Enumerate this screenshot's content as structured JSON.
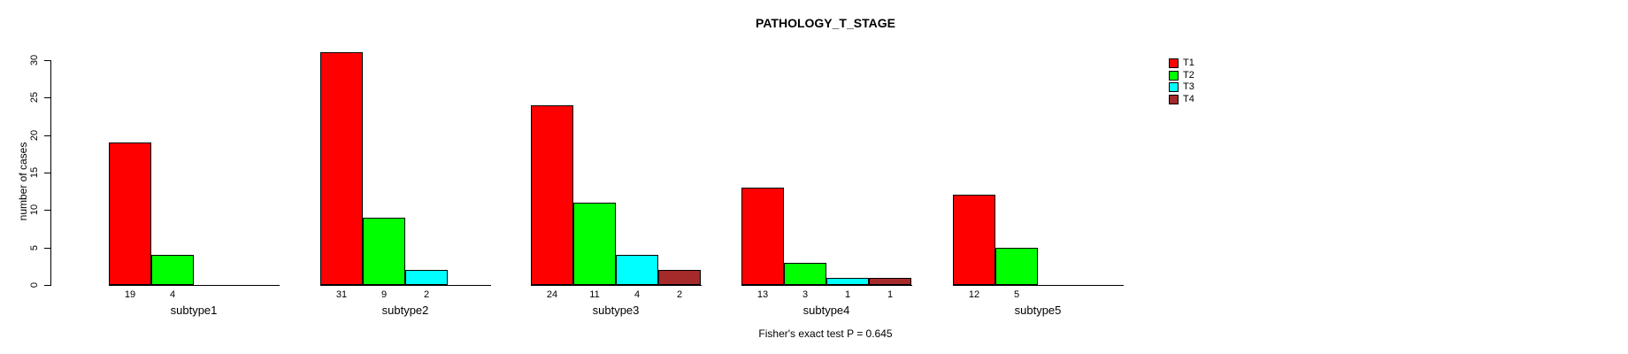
{
  "title": "PATHOLOGY_T_STAGE",
  "y_axis": {
    "label": "number of cases",
    "ticks": [
      0,
      5,
      10,
      15,
      20,
      25,
      30
    ]
  },
  "footer": "Fisher's exact test P = 0.645",
  "chart_data": {
    "type": "bar",
    "title": "PATHOLOGY_T_STAGE",
    "xlabel": "",
    "ylabel": "number of cases",
    "ylim": [
      0,
      30
    ],
    "yticks": [
      0,
      5,
      10,
      15,
      20,
      25,
      30
    ],
    "grid": false,
    "legend_position": "top-right",
    "categories": [
      "subtype1",
      "subtype2",
      "subtype3",
      "subtype4",
      "subtype5"
    ],
    "series": [
      {
        "name": "T1",
        "color": "#FF0000",
        "values": [
          19,
          31,
          24,
          13,
          12
        ]
      },
      {
        "name": "T2",
        "color": "#00FF00",
        "values": [
          4,
          9,
          11,
          3,
          5
        ]
      },
      {
        "name": "T3",
        "color": "#00FFFF",
        "values": [
          null,
          2,
          4,
          1,
          null
        ]
      },
      {
        "name": "T4",
        "color": "#A52A2A",
        "values": [
          null,
          null,
          2,
          1,
          null
        ]
      }
    ],
    "bar_value_labels_shown": true,
    "annotation": "Fisher's exact test P = 0.645"
  }
}
